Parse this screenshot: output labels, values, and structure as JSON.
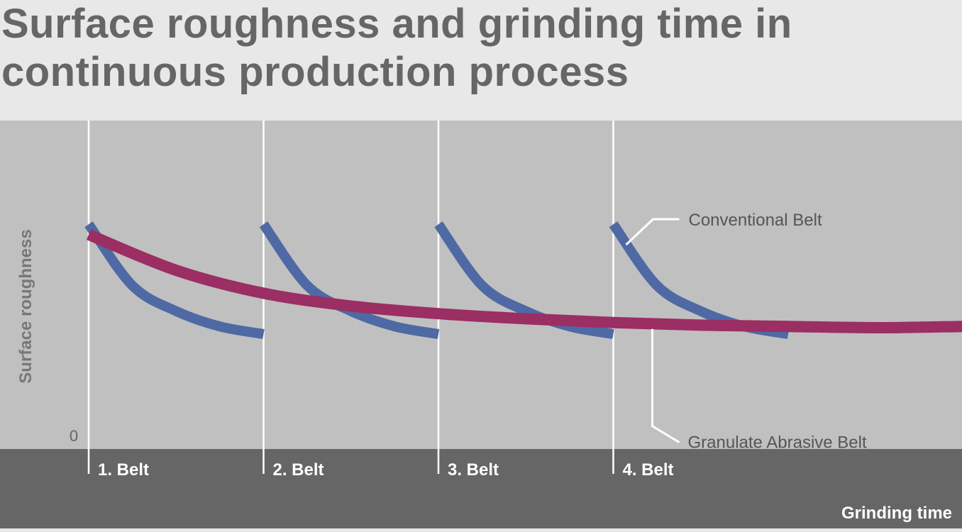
{
  "title": "Surface roughness and grinding time in\ncontinuous production process",
  "colors": {
    "conventional": "#4f69a5",
    "granulate": "#9b2e63",
    "plot_bg": "#c0c0c0",
    "axis_band": "#666666"
  },
  "chart_data": {
    "type": "line",
    "title": "Surface roughness and grinding time in continuous production process",
    "xlabel": "Grinding time",
    "ylabel": "Surface roughness",
    "y_origin_label": "0",
    "x_categories": [
      "1. Belt",
      "2. Belt",
      "3. Belt",
      "4. Belt"
    ],
    "xlim": [
      0,
      5
    ],
    "ylim": [
      0,
      100
    ],
    "annotations": [
      "Conventional Belt",
      "Granulate Abrasive Belt"
    ],
    "series": [
      {
        "name": "Conventional Belt",
        "segments": [
          [
            [
              0,
              88
            ],
            [
              0.25,
              64
            ],
            [
              0.5,
              54
            ],
            [
              0.75,
              48
            ],
            [
              1,
              45
            ]
          ],
          [
            [
              1,
              88
            ],
            [
              1.25,
              64
            ],
            [
              1.5,
              54
            ],
            [
              1.75,
              48
            ],
            [
              2,
              45
            ]
          ],
          [
            [
              2,
              88
            ],
            [
              2.25,
              64
            ],
            [
              2.5,
              54
            ],
            [
              2.75,
              48
            ],
            [
              3,
              45
            ]
          ],
          [
            [
              3,
              88
            ],
            [
              3.25,
              64
            ],
            [
              3.5,
              54
            ],
            [
              3.75,
              48
            ],
            [
              4,
              45
            ]
          ]
        ]
      },
      {
        "name": "Granulate Abrasive Belt",
        "points": [
          [
            0,
            84
          ],
          [
            0.5,
            70
          ],
          [
            1,
            61
          ],
          [
            1.5,
            56
          ],
          [
            2,
            53
          ],
          [
            2.5,
            51
          ],
          [
            3,
            49.5
          ],
          [
            3.5,
            48.5
          ],
          [
            4,
            48
          ],
          [
            4.5,
            47.5
          ],
          [
            5,
            48
          ]
        ]
      }
    ]
  }
}
